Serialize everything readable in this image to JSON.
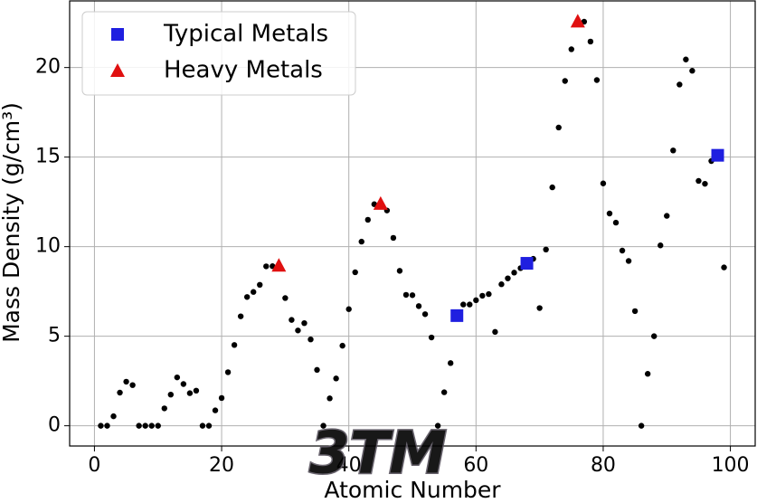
{
  "chart_data": {
    "type": "scatter",
    "xlabel": "Atomic Number",
    "ylabel": "Mass Density (g/cm³)",
    "xlim": [
      -3.9,
      103.9
    ],
    "ylim": [
      -1.13,
      23.72
    ],
    "xticks": [
      0,
      20,
      40,
      60,
      80,
      100
    ],
    "yticks": [
      0,
      5,
      10,
      15,
      20
    ],
    "grid": true,
    "legend": "upper left",
    "watermark": "3TM",
    "series": [
      {
        "color": "#000000",
        "marker": "circle",
        "x": [
          1,
          2,
          3,
          4,
          5,
          6,
          7,
          8,
          9,
          10,
          11,
          12,
          13,
          14,
          15,
          16,
          17,
          18,
          19,
          20,
          21,
          22,
          23,
          24,
          25,
          26,
          27,
          28,
          29,
          30,
          31,
          32,
          33,
          34,
          35,
          36,
          37,
          38,
          39,
          40,
          41,
          42,
          43,
          44,
          45,
          46,
          47,
          48,
          49,
          50,
          51,
          52,
          53,
          54,
          55,
          56,
          57,
          58,
          59,
          60,
          61,
          62,
          63,
          64,
          65,
          66,
          67,
          68,
          69,
          70,
          71,
          72,
          73,
          74,
          75,
          76,
          77,
          78,
          79,
          80,
          81,
          82,
          83,
          84,
          85,
          86,
          87,
          88,
          89,
          90,
          91,
          92,
          93,
          94,
          95,
          96,
          97,
          98,
          99
        ],
        "values": [
          0,
          0,
          0.53,
          1.85,
          2.46,
          2.27,
          0,
          0,
          0,
          0,
          0.97,
          1.74,
          2.7,
          2.33,
          1.82,
          1.96,
          0,
          0,
          0.86,
          1.55,
          2.99,
          4.51,
          6.11,
          7.19,
          7.47,
          7.87,
          8.9,
          8.91,
          8.96,
          7.13,
          5.91,
          5.32,
          5.73,
          4.82,
          3.12,
          0,
          1.53,
          2.64,
          4.47,
          6.51,
          8.57,
          10.28,
          11.5,
          12.37,
          12.41,
          12.02,
          10.49,
          8.65,
          7.31,
          7.29,
          6.68,
          6.23,
          4.93,
          0,
          1.87,
          3.5,
          6.15,
          6.77,
          6.77,
          7.01,
          7.26,
          7.35,
          5.24,
          7.9,
          8.23,
          8.55,
          8.8,
          9.07,
          9.32,
          6.57,
          9.84,
          13.31,
          16.65,
          19.25,
          21.02,
          22.59,
          22.56,
          21.45,
          19.3,
          13.53,
          11.85,
          11.34,
          9.78,
          9.2,
          6.4,
          0,
          2.9,
          5.0,
          10.07,
          11.72,
          15.37,
          19.05,
          20.45,
          19.82,
          13.67,
          13.51,
          14.78,
          15.1,
          8.84
        ]
      },
      {
        "name": "Typical Metals",
        "color": "#1f1fe0",
        "marker": "square",
        "x": [
          57,
          68,
          98
        ],
        "values": [
          6.15,
          9.07,
          15.1
        ]
      },
      {
        "name": "Heavy Metals",
        "color": "#e01010",
        "marker": "triangle",
        "x": [
          29,
          45,
          76
        ],
        "values": [
          8.96,
          12.41,
          22.59
        ]
      }
    ]
  }
}
